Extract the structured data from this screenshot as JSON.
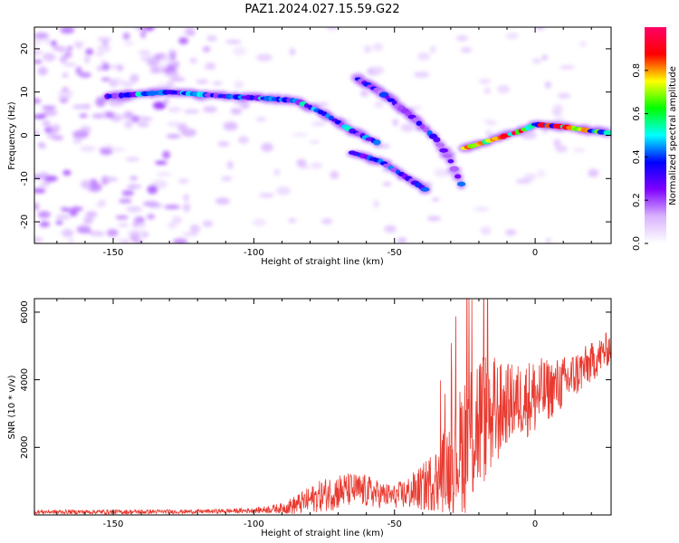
{
  "title": "PAZ1.2024.027.15.59.G22",
  "chart_data": [
    {
      "type": "heatmap",
      "xlabel": "Height of straight line (km)",
      "ylabel": "Frequency (Hz)",
      "xlim": [
        -178,
        27
      ],
      "ylim": [
        -25,
        25
      ],
      "xticks": [
        -150,
        -100,
        -50,
        0
      ],
      "yticks": [
        -20,
        -10,
        0,
        10,
        20
      ],
      "colorbar": {
        "label": "Normalized spectral amplitude",
        "range": [
          0.0,
          1.0
        ],
        "ticks": [
          0.0,
          0.2,
          0.4,
          0.6,
          0.8
        ],
        "colors": [
          "#ffffff",
          "#d9b3ff",
          "#7f00ff",
          "#0000ff",
          "#00ffff",
          "#00ff00",
          "#ffff00",
          "#ff0000",
          "#ff0066"
        ]
      },
      "ridges": [
        {
          "points": [
            [
              -152,
              9
            ],
            [
              -130,
              10
            ],
            [
              -110,
              9
            ],
            [
              -95,
              8.5
            ],
            [
              -85,
              8
            ],
            [
              -75,
              5
            ],
            [
              -65,
              1
            ],
            [
              -55,
              -2
            ]
          ],
          "amplitude": 0.55
        },
        {
          "points": [
            [
              -65,
              -4
            ],
            [
              -55,
              -6
            ],
            [
              -45,
              -10
            ],
            [
              -38,
              -13
            ]
          ],
          "amplitude": 0.45
        },
        {
          "points": [
            [
              -63,
              13
            ],
            [
              -55,
              10
            ],
            [
              -45,
              5
            ],
            [
              -35,
              -1
            ],
            [
              -30,
              -6
            ],
            [
              -25,
              -13
            ]
          ],
          "amplitude": 0.45
        },
        {
          "points": [
            [
              -25,
              -3
            ],
            [
              -15,
              -1
            ],
            [
              -5,
              1
            ],
            [
              0,
              2.5
            ],
            [
              10,
              2
            ],
            [
              20,
              1
            ],
            [
              27,
              0.5
            ]
          ],
          "amplitude": 0.95
        }
      ]
    },
    {
      "type": "line",
      "xlabel": "Height of straight line (km)",
      "ylabel": "SNR (10 * v/v)",
      "xlim": [
        -178,
        27
      ],
      "ylim": [
        0,
        6400
      ],
      "xticks": [
        -150,
        -100,
        -50,
        0
      ],
      "yticks": [
        2000,
        4000,
        6000
      ],
      "color": "#e83a30",
      "envelope": {
        "x": [
          -178,
          -150,
          -120,
          -100,
          -90,
          -85,
          -80,
          -75,
          -70,
          -65,
          -60,
          -55,
          -50,
          -45,
          -40,
          -35,
          -30,
          -27,
          -25,
          -22,
          -20,
          -18,
          -15,
          -12,
          -10,
          -5,
          0,
          5,
          10,
          15,
          20,
          27
        ],
        "base": [
          90,
          90,
          100,
          130,
          200,
          300,
          450,
          600,
          700,
          750,
          700,
          600,
          550,
          650,
          800,
          1100,
          1500,
          1900,
          2200,
          2600,
          2800,
          2900,
          3000,
          3100,
          3300,
          3400,
          3500,
          3700,
          3900,
          4200,
          4500,
          5000
        ],
        "spread": [
          60,
          70,
          60,
          80,
          150,
          300,
          400,
          500,
          550,
          500,
          500,
          400,
          350,
          500,
          700,
          1000,
          1500,
          1800,
          2200,
          2400,
          2300,
          2000,
          1800,
          1400,
          1200,
          1100,
          1200,
          900,
          800,
          700,
          600,
          500
        ]
      }
    }
  ]
}
